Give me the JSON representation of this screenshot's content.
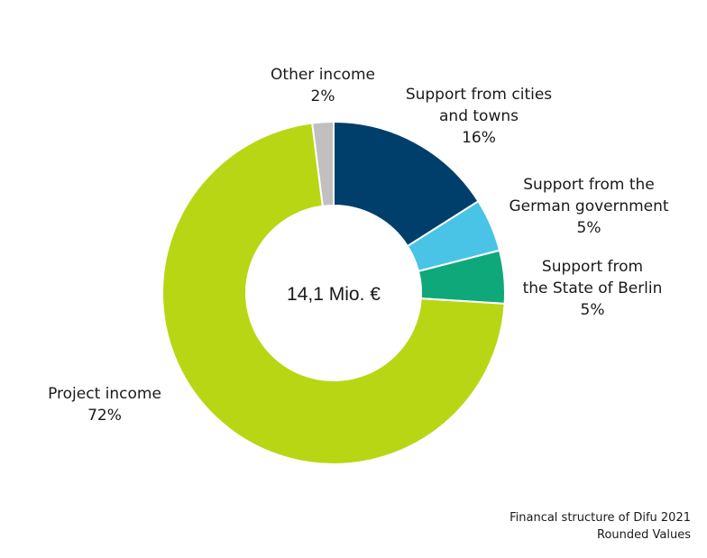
{
  "chart_data": {
    "type": "pie",
    "donut": true,
    "center_label": "14,1 Mio. €",
    "slices": [
      {
        "label_lines": [
          "Support from cities",
          "and towns"
        ],
        "value_label": "16%",
        "value": 16,
        "color": "#003f6b"
      },
      {
        "label_lines": [
          "Support from the",
          "German government"
        ],
        "value_label": "5%",
        "value": 5,
        "color": "#49c4e6"
      },
      {
        "label_lines": [
          "Support from",
          "the State of Berlin"
        ],
        "value_label": "5%",
        "value": 5,
        "color": "#0fa87a"
      },
      {
        "label_lines": [
          "Project income"
        ],
        "value_label": "72%",
        "value": 72,
        "color": "#b9d614"
      },
      {
        "label_lines": [
          "Other income"
        ],
        "value_label": "2%",
        "value": 2,
        "color": "#c0c0c0"
      }
    ]
  },
  "footer": {
    "line1": "Financal structure of Difu 2021",
    "line2": "Rounded Values"
  }
}
